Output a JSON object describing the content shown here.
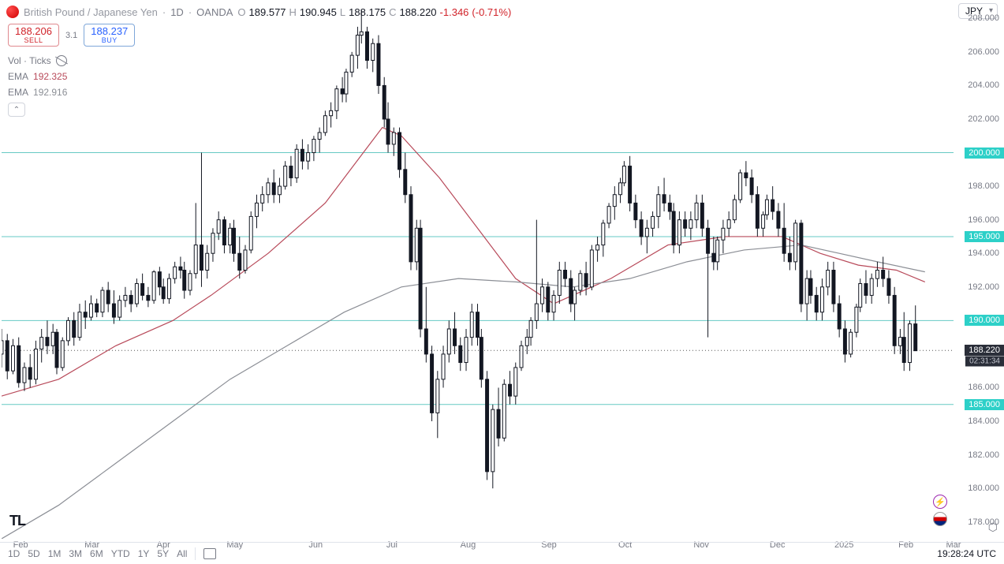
{
  "header": {
    "pair_name": "British Pound / Japanese Yen",
    "interval": "1D",
    "broker": "OANDA",
    "o_lbl": "O",
    "o": "189.577",
    "h_lbl": "H",
    "h": "190.945",
    "l_lbl": "L",
    "l": "188.175",
    "c_lbl": "C",
    "c": "188.220",
    "chg": "-1.346",
    "chg_pct": "(-0.71%)",
    "currency": "JPY"
  },
  "quotes": {
    "sell_price": "188.206",
    "sell_lbl": "SELL",
    "spread": "3.1",
    "buy_price": "188.237",
    "buy_lbl": "BUY"
  },
  "indicators": {
    "vol_lbl": "Vol · Ticks",
    "ema1_lbl": "EMA",
    "ema1_val": "192.325",
    "ema1_color": "#b84a5a",
    "ema2_lbl": "EMA",
    "ema2_val": "192.916",
    "ema2_color": "#8b8e95"
  },
  "yaxis": {
    "min": 177,
    "max": 209,
    "ticks": [
      178,
      180,
      182,
      184,
      186,
      190,
      192,
      194,
      196,
      198,
      202,
      204,
      206,
      208
    ],
    "tick_labels": [
      "178.000",
      "180.000",
      "182.000",
      "184.000",
      "186.000",
      "190.000",
      "192.000",
      "194.000",
      "196.000",
      "198.000",
      "202.000",
      "204.000",
      "206.000",
      "208.000"
    ],
    "hlines": [
      185,
      190,
      195,
      200
    ],
    "hline_labels": [
      "185.000",
      "190.000",
      "195.000",
      "200.000"
    ],
    "current": 188.22,
    "current_lbl": "188.220",
    "countdown": "02:31:34",
    "hline_color": "#66c9c4",
    "hline_box_bg": "#2dd0c8"
  },
  "xaxis": {
    "labels": [
      "Feb",
      "Mar",
      "Apr",
      "May",
      "Jun",
      "Jul",
      "Aug",
      "Sep",
      "Oct",
      "Nov",
      "Dec",
      "2025",
      "Feb",
      "Mar"
    ],
    "positions": [
      0.02,
      0.095,
      0.17,
      0.245,
      0.33,
      0.41,
      0.49,
      0.575,
      0.655,
      0.735,
      0.815,
      0.885,
      0.95,
      1.0
    ]
  },
  "candles": {
    "color_up": "#131722",
    "color_down": "#131722",
    "wick_color": "#131722",
    "data": [
      [
        0.0,
        188.0,
        189.5,
        187.2,
        188.8
      ],
      [
        0.006,
        188.8,
        189.2,
        186.5,
        187.0
      ],
      [
        0.012,
        187.0,
        188.9,
        186.8,
        188.5
      ],
      [
        0.018,
        188.5,
        189.0,
        186.0,
        186.3
      ],
      [
        0.024,
        186.3,
        187.5,
        185.8,
        187.2
      ],
      [
        0.03,
        187.2,
        188.0,
        186.0,
        186.5
      ],
      [
        0.036,
        186.5,
        188.8,
        186.2,
        188.3
      ],
      [
        0.042,
        188.3,
        189.5,
        187.5,
        189.0
      ],
      [
        0.048,
        189.0,
        190.0,
        188.0,
        188.5
      ],
      [
        0.054,
        188.5,
        189.8,
        188.0,
        189.3
      ],
      [
        0.058,
        189.3,
        189.5,
        186.8,
        187.2
      ],
      [
        0.064,
        187.2,
        189.0,
        187.0,
        188.8
      ],
      [
        0.07,
        188.8,
        190.2,
        188.5,
        190.0
      ],
      [
        0.076,
        190.0,
        190.5,
        188.5,
        189.0
      ],
      [
        0.082,
        189.0,
        191.0,
        188.8,
        190.5
      ],
      [
        0.088,
        190.5,
        191.2,
        189.5,
        190.2
      ],
      [
        0.094,
        190.2,
        191.5,
        190.0,
        191.0
      ],
      [
        0.1,
        191.0,
        191.3,
        190.2,
        190.5
      ],
      [
        0.106,
        190.5,
        192.0,
        190.2,
        191.8
      ],
      [
        0.112,
        191.8,
        192.3,
        190.5,
        191.0
      ],
      [
        0.118,
        191.0,
        191.8,
        189.8,
        190.2
      ],
      [
        0.124,
        190.2,
        191.5,
        190.0,
        191.2
      ],
      [
        0.13,
        191.2,
        192.0,
        190.8,
        191.5
      ],
      [
        0.136,
        191.5,
        191.8,
        190.5,
        191.0
      ],
      [
        0.142,
        191.0,
        192.5,
        190.8,
        192.2
      ],
      [
        0.148,
        192.2,
        192.8,
        191.2,
        191.5
      ],
      [
        0.154,
        191.5,
        192.0,
        190.8,
        191.2
      ],
      [
        0.16,
        191.2,
        193.0,
        191.0,
        192.9
      ],
      [
        0.166,
        192.9,
        193.2,
        191.5,
        192.0
      ],
      [
        0.17,
        192.0,
        192.5,
        191.0,
        191.3
      ],
      [
        0.176,
        191.3,
        192.8,
        191.0,
        192.5
      ],
      [
        0.182,
        192.5,
        193.5,
        192.2,
        193.2
      ],
      [
        0.188,
        193.2,
        193.8,
        192.5,
        193.0
      ],
      [
        0.192,
        193.0,
        193.5,
        191.3,
        191.8
      ],
      [
        0.198,
        191.8,
        193.0,
        191.5,
        192.8
      ],
      [
        0.204,
        192.8,
        197.0,
        192.5,
        194.5
      ],
      [
        0.21,
        194.5,
        200.0,
        192.0,
        193.0
      ],
      [
        0.216,
        193.0,
        194.5,
        192.5,
        194.0
      ],
      [
        0.222,
        194.0,
        195.5,
        193.5,
        195.2
      ],
      [
        0.228,
        195.2,
        196.5,
        194.8,
        196.0
      ],
      [
        0.234,
        196.0,
        196.2,
        194.0,
        194.5
      ],
      [
        0.24,
        194.5,
        195.8,
        194.0,
        195.5
      ],
      [
        0.244,
        195.5,
        196.0,
        193.5,
        194.0
      ],
      [
        0.25,
        194.0,
        195.0,
        192.5,
        193.0
      ],
      [
        0.256,
        193.0,
        194.5,
        192.8,
        194.2
      ],
      [
        0.262,
        194.2,
        196.5,
        194.0,
        196.2
      ],
      [
        0.268,
        196.2,
        197.5,
        195.5,
        197.0
      ],
      [
        0.274,
        197.0,
        198.0,
        196.5,
        197.5
      ],
      [
        0.28,
        197.5,
        198.5,
        197.0,
        198.2
      ],
      [
        0.286,
        198.2,
        199.0,
        197.0,
        197.5
      ],
      [
        0.292,
        197.5,
        198.5,
        197.0,
        198.0
      ],
      [
        0.298,
        198.0,
        199.5,
        197.8,
        199.2
      ],
      [
        0.304,
        199.2,
        199.8,
        198.0,
        198.5
      ],
      [
        0.31,
        198.5,
        200.5,
        198.2,
        200.2
      ],
      [
        0.316,
        200.2,
        200.8,
        199.0,
        199.5
      ],
      [
        0.322,
        199.5,
        200.5,
        199.0,
        200.0
      ],
      [
        0.328,
        200.0,
        201.0,
        199.5,
        200.8
      ],
      [
        0.334,
        200.8,
        201.5,
        200.0,
        201.2
      ],
      [
        0.34,
        201.2,
        202.5,
        201.0,
        202.2
      ],
      [
        0.346,
        202.2,
        203.0,
        201.5,
        202.5
      ],
      [
        0.352,
        202.5,
        204.0,
        202.0,
        203.8
      ],
      [
        0.358,
        203.8,
        204.5,
        203.0,
        203.5
      ],
      [
        0.362,
        203.5,
        205.0,
        203.0,
        204.8
      ],
      [
        0.368,
        204.8,
        206.0,
        204.5,
        205.8
      ],
      [
        0.374,
        205.8,
        207.5,
        205.0,
        207.0
      ],
      [
        0.378,
        207.0,
        208.5,
        206.5,
        207.2
      ],
      [
        0.384,
        207.2,
        207.5,
        205.0,
        205.5
      ],
      [
        0.39,
        205.5,
        206.8,
        204.8,
        206.5
      ],
      [
        0.396,
        206.5,
        207.0,
        203.5,
        204.0
      ],
      [
        0.402,
        204.0,
        204.5,
        201.5,
        202.0
      ],
      [
        0.406,
        202.0,
        203.0,
        200.0,
        200.5
      ],
      [
        0.412,
        200.5,
        201.5,
        199.8,
        201.2
      ],
      [
        0.418,
        201.2,
        201.5,
        198.5,
        199.0
      ],
      [
        0.424,
        199.0,
        200.0,
        197.0,
        197.5
      ],
      [
        0.43,
        197.5,
        198.0,
        193.0,
        193.5
      ],
      [
        0.436,
        193.5,
        196.0,
        193.0,
        195.5
      ],
      [
        0.44,
        195.5,
        196.0,
        189.0,
        189.5
      ],
      [
        0.446,
        189.5,
        192.0,
        187.5,
        188.0
      ],
      [
        0.452,
        188.0,
        188.5,
        184.0,
        184.5
      ],
      [
        0.458,
        184.5,
        187.0,
        183.0,
        186.5
      ],
      [
        0.464,
        186.5,
        188.5,
        186.0,
        188.0
      ],
      [
        0.47,
        188.0,
        190.0,
        187.5,
        189.5
      ],
      [
        0.476,
        189.5,
        190.5,
        188.0,
        188.5
      ],
      [
        0.482,
        188.5,
        189.0,
        187.0,
        187.5
      ],
      [
        0.488,
        187.5,
        189.5,
        187.0,
        189.0
      ],
      [
        0.494,
        189.0,
        191.0,
        188.5,
        190.5
      ],
      [
        0.5,
        190.5,
        191.0,
        188.5,
        189.0
      ],
      [
        0.504,
        189.0,
        189.5,
        186.0,
        186.5
      ],
      [
        0.51,
        186.5,
        187.0,
        180.5,
        181.0
      ],
      [
        0.516,
        181.0,
        185.0,
        180.0,
        184.7
      ],
      [
        0.522,
        184.7,
        186.0,
        182.5,
        183.0
      ],
      [
        0.528,
        183.0,
        186.5,
        182.8,
        186.2
      ],
      [
        0.534,
        186.2,
        187.0,
        185.0,
        185.5
      ],
      [
        0.54,
        185.5,
        187.5,
        185.0,
        187.2
      ],
      [
        0.546,
        187.2,
        188.8,
        187.0,
        188.5
      ],
      [
        0.552,
        188.5,
        189.5,
        188.0,
        189.0
      ],
      [
        0.556,
        189.0,
        190.2,
        188.5,
        190.0
      ],
      [
        0.562,
        190.0,
        196.0,
        189.5,
        191.0
      ],
      [
        0.568,
        191.0,
        192.5,
        190.5,
        192.0
      ],
      [
        0.574,
        192.0,
        192.3,
        190.0,
        190.5
      ],
      [
        0.58,
        190.5,
        191.8,
        190.0,
        191.5
      ],
      [
        0.586,
        191.5,
        193.5,
        191.0,
        193.0
      ],
      [
        0.592,
        193.0,
        193.5,
        192.0,
        192.5
      ],
      [
        0.598,
        192.5,
        193.0,
        190.5,
        191.0
      ],
      [
        0.602,
        191.0,
        192.0,
        190.0,
        191.8
      ],
      [
        0.608,
        191.8,
        193.0,
        191.5,
        192.8
      ],
      [
        0.614,
        192.8,
        193.5,
        191.5,
        192.0
      ],
      [
        0.62,
        192.0,
        194.5,
        191.8,
        194.2
      ],
      [
        0.626,
        194.2,
        195.0,
        193.5,
        194.5
      ],
      [
        0.632,
        194.5,
        196.0,
        193.8,
        195.8
      ],
      [
        0.638,
        195.8,
        197.0,
        195.5,
        196.8
      ],
      [
        0.644,
        196.8,
        198.0,
        196.0,
        197.5
      ],
      [
        0.65,
        197.5,
        198.5,
        197.0,
        198.2
      ],
      [
        0.654,
        198.2,
        199.5,
        198.0,
        199.2
      ],
      [
        0.66,
        199.2,
        199.8,
        196.5,
        197.0
      ],
      [
        0.666,
        197.0,
        197.5,
        195.5,
        196.0
      ],
      [
        0.672,
        196.0,
        196.5,
        194.5,
        195.0
      ],
      [
        0.678,
        195.0,
        196.0,
        194.0,
        195.5
      ],
      [
        0.684,
        195.5,
        196.5,
        195.0,
        196.2
      ],
      [
        0.69,
        196.2,
        198.0,
        195.5,
        197.5
      ],
      [
        0.696,
        197.5,
        198.5,
        196.5,
        197.0
      ],
      [
        0.702,
        197.0,
        197.5,
        196.0,
        196.5
      ],
      [
        0.706,
        196.5,
        197.0,
        194.0,
        194.5
      ],
      [
        0.712,
        194.5,
        196.5,
        194.0,
        196.0
      ],
      [
        0.718,
        196.0,
        196.5,
        195.0,
        195.5
      ],
      [
        0.724,
        195.5,
        196.5,
        194.8,
        196.0
      ],
      [
        0.73,
        196.0,
        197.5,
        195.5,
        197.0
      ],
      [
        0.736,
        197.0,
        197.5,
        195.0,
        195.5
      ],
      [
        0.742,
        195.5,
        196.0,
        189.0,
        194.0
      ],
      [
        0.748,
        194.0,
        195.0,
        193.0,
        193.5
      ],
      [
        0.752,
        193.5,
        195.0,
        193.0,
        194.8
      ],
      [
        0.758,
        194.8,
        196.0,
        194.0,
        195.5
      ],
      [
        0.764,
        195.5,
        196.5,
        195.0,
        196.0
      ],
      [
        0.77,
        196.0,
        197.5,
        195.8,
        197.2
      ],
      [
        0.776,
        197.2,
        199.0,
        197.0,
        198.8
      ],
      [
        0.782,
        198.8,
        199.5,
        198.0,
        198.5
      ],
      [
        0.788,
        198.5,
        199.0,
        197.0,
        197.5
      ],
      [
        0.794,
        197.5,
        198.0,
        195.0,
        195.5
      ],
      [
        0.8,
        195.5,
        196.5,
        195.0,
        196.3
      ],
      [
        0.804,
        196.3,
        197.5,
        196.0,
        197.2
      ],
      [
        0.81,
        197.2,
        198.0,
        196.0,
        196.5
      ],
      [
        0.816,
        196.5,
        197.0,
        195.0,
        195.5
      ],
      [
        0.822,
        195.5,
        197.0,
        193.5,
        194.0
      ],
      [
        0.828,
        194.0,
        195.0,
        193.0,
        193.5
      ],
      [
        0.834,
        193.5,
        196.0,
        193.0,
        195.8
      ],
      [
        0.84,
        195.8,
        196.0,
        190.5,
        191.0
      ],
      [
        0.846,
        191.0,
        193.0,
        190.0,
        192.5
      ],
      [
        0.85,
        192.5,
        193.0,
        191.0,
        191.5
      ],
      [
        0.856,
        191.5,
        192.0,
        190.0,
        190.5
      ],
      [
        0.862,
        190.5,
        192.5,
        190.0,
        192.0
      ],
      [
        0.868,
        192.0,
        193.5,
        191.5,
        193.0
      ],
      [
        0.874,
        193.0,
        193.5,
        190.5,
        191.0
      ],
      [
        0.88,
        191.0,
        191.5,
        189.0,
        189.5
      ],
      [
        0.886,
        189.5,
        190.0,
        187.5,
        188.0
      ],
      [
        0.892,
        188.0,
        189.5,
        187.8,
        189.3
      ],
      [
        0.898,
        189.3,
        191.0,
        189.0,
        190.8
      ],
      [
        0.902,
        190.8,
        192.5,
        190.5,
        192.2
      ],
      [
        0.908,
        192.2,
        193.0,
        191.0,
        191.5
      ],
      [
        0.914,
        191.5,
        192.8,
        191.0,
        192.5
      ],
      [
        0.92,
        192.5,
        193.5,
        192.0,
        193.0
      ],
      [
        0.926,
        193.0,
        193.8,
        192.0,
        192.5
      ],
      [
        0.932,
        192.5,
        193.0,
        191.0,
        191.5
      ],
      [
        0.938,
        191.5,
        192.0,
        188.0,
        188.5
      ],
      [
        0.944,
        188.5,
        189.5,
        188.0,
        189.0
      ],
      [
        0.948,
        189.0,
        190.5,
        187.0,
        187.5
      ],
      [
        0.954,
        187.5,
        190.0,
        187.0,
        189.8
      ],
      [
        0.96,
        189.8,
        190.9,
        188.2,
        188.2
      ]
    ]
  },
  "ema_lines": {
    "ema1": {
      "color": "#b84a5a",
      "width": 1.2,
      "points": [
        [
          0,
          185.5
        ],
        [
          0.06,
          186.5
        ],
        [
          0.12,
          188.5
        ],
        [
          0.18,
          190.0
        ],
        [
          0.22,
          191.5
        ],
        [
          0.28,
          194.0
        ],
        [
          0.34,
          197.0
        ],
        [
          0.38,
          200.0
        ],
        [
          0.4,
          201.5
        ],
        [
          0.42,
          201.0
        ],
        [
          0.46,
          198.5
        ],
        [
          0.5,
          195.5
        ],
        [
          0.54,
          192.5
        ],
        [
          0.58,
          191.0
        ],
        [
          0.64,
          192.5
        ],
        [
          0.7,
          194.5
        ],
        [
          0.76,
          195.0
        ],
        [
          0.82,
          195.0
        ],
        [
          0.86,
          194.0
        ],
        [
          0.9,
          193.3
        ],
        [
          0.94,
          193.0
        ],
        [
          0.97,
          192.3
        ]
      ]
    },
    "ema2": {
      "color": "#8b8e95",
      "width": 1.2,
      "points": [
        [
          0,
          177.0
        ],
        [
          0.06,
          179.0
        ],
        [
          0.12,
          181.5
        ],
        [
          0.18,
          184.0
        ],
        [
          0.24,
          186.5
        ],
        [
          0.3,
          188.5
        ],
        [
          0.36,
          190.5
        ],
        [
          0.42,
          192.0
        ],
        [
          0.48,
          192.5
        ],
        [
          0.54,
          192.3
        ],
        [
          0.6,
          192.0
        ],
        [
          0.66,
          192.5
        ],
        [
          0.72,
          193.5
        ],
        [
          0.78,
          194.2
        ],
        [
          0.84,
          194.5
        ],
        [
          0.88,
          194.0
        ],
        [
          0.92,
          193.5
        ],
        [
          0.97,
          192.9
        ]
      ]
    }
  },
  "footer": {
    "timeframes": [
      "1D",
      "5D",
      "1M",
      "3M",
      "6M",
      "YTD",
      "1Y",
      "5Y",
      "All"
    ],
    "clock": "19:28:24 UTC"
  },
  "logo": "TL",
  "colors": {
    "bg": "#ffffff",
    "text_muted": "#787b86",
    "text": "#131722",
    "neg": "#d1232a",
    "pos": "#089981",
    "accent": "#2962ff"
  }
}
